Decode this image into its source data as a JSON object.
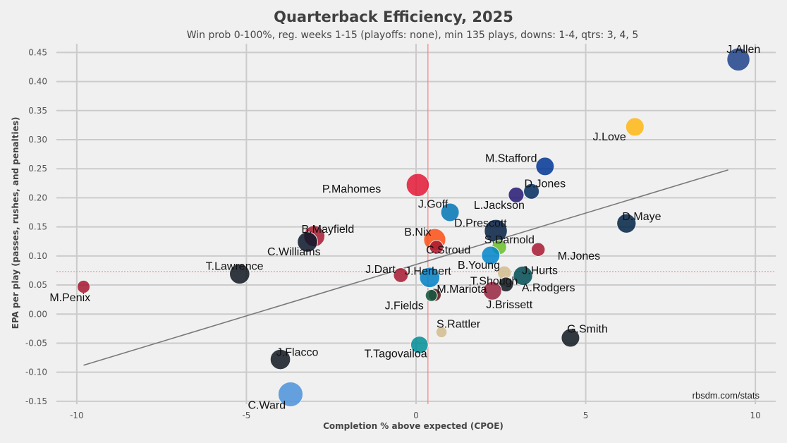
{
  "chart_data": {
    "type": "scatter",
    "title": "Quarterback Efficiency, 2025",
    "subtitle": "Win prob 0-100%, reg. weeks 1-15 (playoffs: none), min 135 plays, downs: 1-4, qtrs: 3, 4, 5",
    "xlabel": "Completion % above expected (CPOE)",
    "ylabel": "EPA per play (passes, rushes, and penalties)",
    "source": "rbsdm.com/stats",
    "xlim": [
      -10.6,
      10.6
    ],
    "ylim": [
      -0.155,
      0.465
    ],
    "x_ticks": [
      -10,
      -5,
      0,
      5,
      10
    ],
    "y_ticks": [
      -0.15,
      -0.1,
      -0.05,
      0.0,
      0.05,
      0.1,
      0.15,
      0.2,
      0.25,
      0.3,
      0.35,
      0.4,
      0.45
    ],
    "x_tick_labels": [
      "-10",
      "-5",
      "0",
      "5",
      "10"
    ],
    "y_tick_labels": [
      "-0.15",
      "-0.10",
      "-0.05",
      "0.00",
      "0.05",
      "0.10",
      "0.15",
      "0.20",
      "0.25",
      "0.30",
      "0.35",
      "0.40",
      "0.45"
    ],
    "grid": true,
    "mean_x": 0.35,
    "mean_y": 0.073,
    "trendline": [
      [
        -9.8,
        -0.088
      ],
      [
        9.2,
        0.248
      ]
    ],
    "points": [
      {
        "name": "J.Allen",
        "x": 9.5,
        "y": 0.438,
        "size": 1.25,
        "color": "#1d428a",
        "lx": 9.65,
        "ly": 0.455
      },
      {
        "name": "J.Love",
        "x": 6.45,
        "y": 0.322,
        "size": 1.0,
        "color": "#ffb612",
        "lx": 5.7,
        "ly": 0.305
      },
      {
        "name": "M.Stafford",
        "x": 3.8,
        "y": 0.254,
        "size": 1.0,
        "color": "#003594",
        "lx": 2.8,
        "ly": 0.268
      },
      {
        "name": "D.Jones",
        "x": 3.4,
        "y": 0.211,
        "size": 0.85,
        "color": "#002c5f",
        "lx": 3.8,
        "ly": 0.224
      },
      {
        "name": "L.Jackson",
        "x": 2.95,
        "y": 0.205,
        "size": 0.85,
        "color": "#241773",
        "lx": 2.45,
        "ly": 0.187
      },
      {
        "name": "P.Mahomes",
        "x": 0.05,
        "y": 0.222,
        "size": 1.25,
        "color": "#e31837",
        "lx": -1.9,
        "ly": 0.215
      },
      {
        "name": "J.Goff",
        "x": 1.0,
        "y": 0.175,
        "size": 1.0,
        "color": "#0076b6",
        "lx": 0.5,
        "ly": 0.189
      },
      {
        "name": "D.Maye",
        "x": 6.2,
        "y": 0.156,
        "size": 1.05,
        "color": "#002244",
        "lx": 6.65,
        "ly": 0.168
      },
      {
        "name": "D.Prescott",
        "x": 2.35,
        "y": 0.143,
        "size": 1.25,
        "color": "#041e42",
        "lx": 1.9,
        "ly": 0.156
      },
      {
        "name": "B.Nix",
        "x": 0.55,
        "y": 0.128,
        "size": 1.2,
        "color": "#fb4f14",
        "lx": 0.05,
        "ly": 0.141
      },
      {
        "name": "S.Darnold",
        "x": 2.45,
        "y": 0.115,
        "size": 0.8,
        "color": "#69be28",
        "lx": 2.75,
        "ly": 0.128
      },
      {
        "name": "B.Mayfield",
        "x": -3.0,
        "y": 0.134,
        "size": 1.15,
        "color": "#a71930",
        "lx": -2.6,
        "ly": 0.146
      },
      {
        "name": "C.Williams",
        "x": -3.2,
        "y": 0.124,
        "size": 1.1,
        "color": "#0b162a",
        "lx": -3.6,
        "ly": 0.107
      },
      {
        "name": "C.Stroud",
        "x": 0.6,
        "y": 0.115,
        "size": 0.75,
        "color": "#a71930",
        "lx": 0.95,
        "ly": 0.11
      },
      {
        "name": "M.Jones",
        "x": 3.6,
        "y": 0.111,
        "size": 0.75,
        "color": "#a71930",
        "lx": 4.8,
        "ly": 0.1
      },
      {
        "name": "B.Young",
        "x": 2.2,
        "y": 0.101,
        "size": 1.0,
        "color": "#0085ca",
        "lx": 1.85,
        "ly": 0.084
      },
      {
        "name": "T.Lawrence",
        "x": -5.2,
        "y": 0.069,
        "size": 1.1,
        "color": "#101820",
        "lx": -5.35,
        "ly": 0.082
      },
      {
        "name": "J.Herbert",
        "x": 0.4,
        "y": 0.063,
        "size": 1.1,
        "color": "#0080c6",
        "lx": 0.35,
        "ly": 0.074
      },
      {
        "name": "J.Dart",
        "x": -0.45,
        "y": 0.067,
        "size": 0.8,
        "color": "#a71930",
        "lx": -1.05,
        "ly": 0.077
      },
      {
        "name": "T.Shough",
        "x": 2.6,
        "y": 0.071,
        "size": 0.75,
        "color": "#d3bc8d",
        "lx": 2.3,
        "ly": 0.057
      },
      {
        "name": "J.Hurts",
        "x": 3.15,
        "y": 0.066,
        "size": 1.05,
        "color": "#004c54",
        "lx": 3.65,
        "ly": 0.075
      },
      {
        "name": "A.Rodgers",
        "x": 2.65,
        "y": 0.051,
        "size": 0.8,
        "color": "#101820",
        "lx": 3.9,
        "ly": 0.045
      },
      {
        "name": "M.Penix",
        "x": -9.8,
        "y": 0.047,
        "size": 0.7,
        "color": "#a71930",
        "lx": -10.2,
        "ly": 0.028
      },
      {
        "name": "M.Mariota",
        "x": 0.55,
        "y": 0.033,
        "size": 0.7,
        "color": "#5a1414",
        "lx": 1.35,
        "ly": 0.043
      },
      {
        "name": "J.Fields",
        "x": 0.45,
        "y": 0.032,
        "size": 0.65,
        "color": "#125740",
        "lx": -0.35,
        "ly": 0.014
      },
      {
        "name": "J.Brissett",
        "x": 2.25,
        "y": 0.04,
        "size": 1.0,
        "color": "#97233f",
        "lx": 2.75,
        "ly": 0.016
      },
      {
        "name": "S.Rattler",
        "x": 0.75,
        "y": -0.031,
        "size": 0.6,
        "color": "#d3bc8d",
        "lx": 1.25,
        "ly": -0.017
      },
      {
        "name": "G.Smith",
        "x": 4.55,
        "y": -0.041,
        "size": 1.0,
        "color": "#101820",
        "lx": 5.05,
        "ly": -0.026
      },
      {
        "name": "T.Tagovailoa",
        "x": 0.1,
        "y": -0.053,
        "size": 0.95,
        "color": "#008e97",
        "lx": -0.6,
        "ly": -0.068
      },
      {
        "name": "J.Flacco",
        "x": -4.0,
        "y": -0.078,
        "size": 1.1,
        "color": "#101820",
        "lx": -3.5,
        "ly": -0.066
      },
      {
        "name": "C.Ward",
        "x": -3.7,
        "y": -0.138,
        "size": 1.35,
        "color": "#4b92db",
        "lx": -4.4,
        "ly": -0.157
      }
    ]
  },
  "colors": {
    "background": "#f0f0f0",
    "grid": "#cbcbcb",
    "mean_line": "#ff7f7f",
    "trendline": "#7a7a7a"
  }
}
